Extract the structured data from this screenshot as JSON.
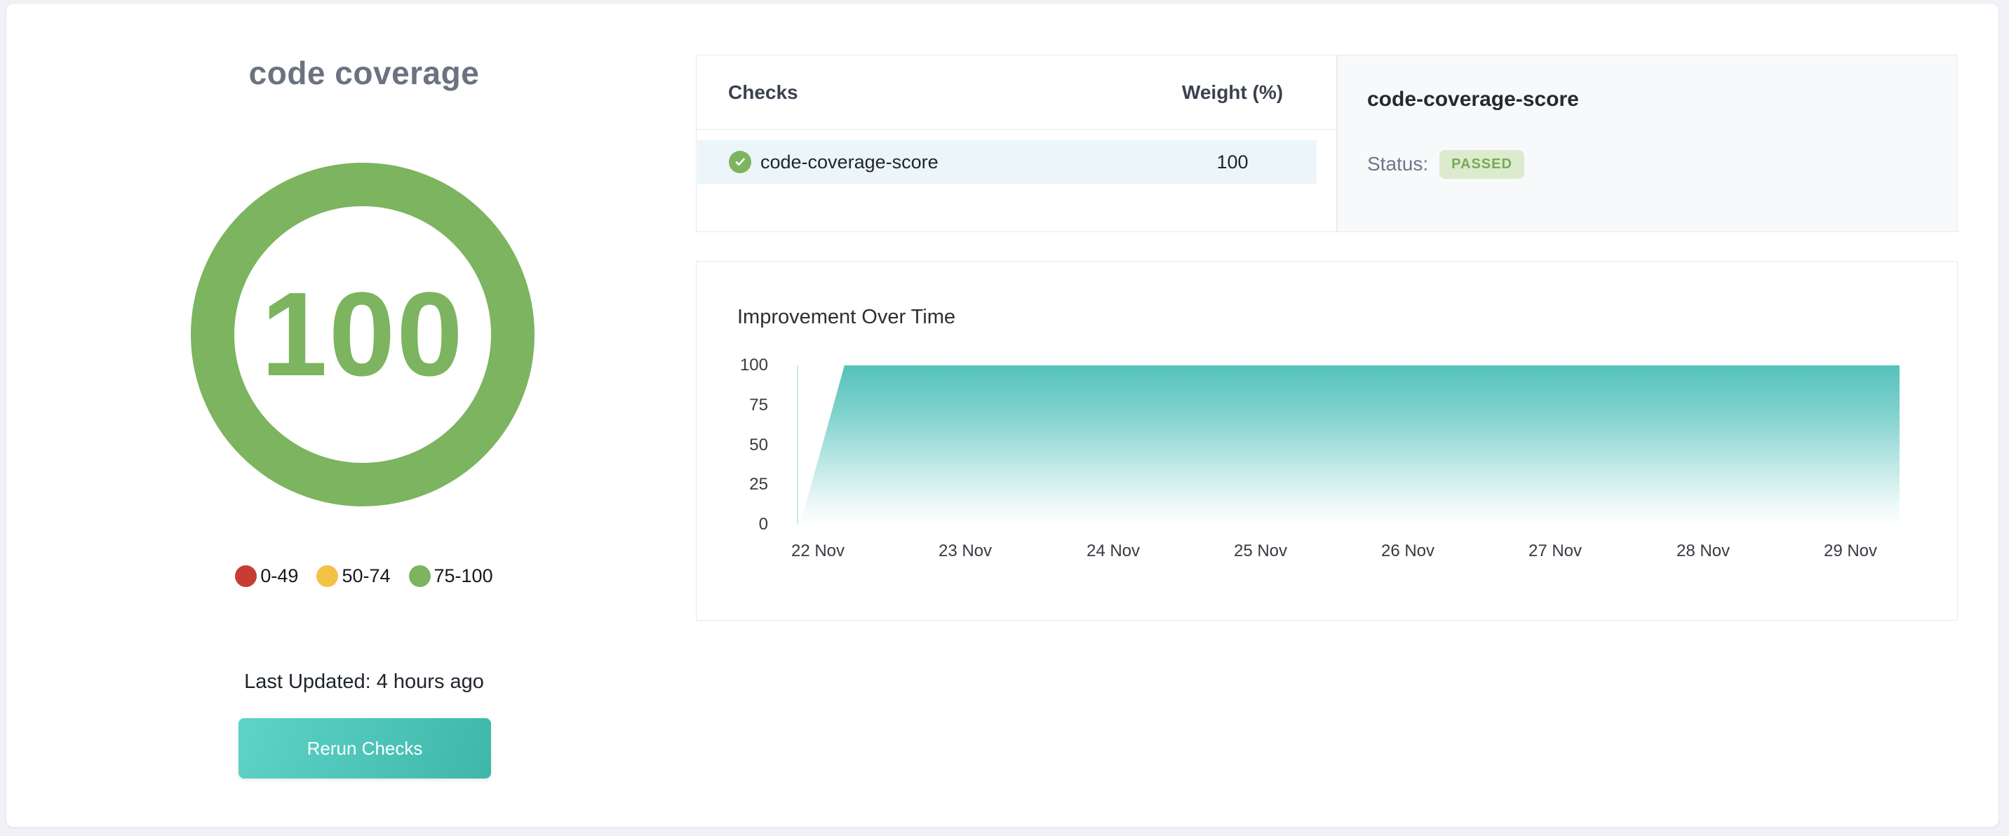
{
  "colors": {
    "green": "#7cb45f",
    "red": "#c63e33",
    "yellow": "#f2c245",
    "teal_area": "#54c2bc",
    "button_from": "#5ed3c8",
    "button_to": "#3eb7a9",
    "row_highlight": "#ecf6fa",
    "badge_bg": "#dcebce",
    "badge_text": "#76ab55",
    "axis_line": "#c9ebe8",
    "title_gray": "#6b7280"
  },
  "gauge_panel": {
    "title": "code coverage",
    "score": "100",
    "legend": [
      {
        "label": "0-49",
        "color": "#c63e33"
      },
      {
        "label": "50-74",
        "color": "#f2c245"
      },
      {
        "label": "75-100",
        "color": "#7cb45f"
      }
    ],
    "last_updated": "Last Updated: 4 hours ago",
    "rerun_button_label": "Rerun Checks"
  },
  "checks_table": {
    "columns": [
      "Checks",
      "Weight (%)"
    ],
    "rows": [
      {
        "name": "code-coverage-score",
        "weight": "100",
        "status_icon": "check-passed-icon",
        "selected": true
      }
    ]
  },
  "status_panel": {
    "title": "code-coverage-score",
    "status_label": "Status:",
    "status_value": "PASSED"
  },
  "chart_data": {
    "type": "area",
    "title": "Improvement Over Time",
    "x_tick_labels": [
      "22 Nov",
      "23 Nov",
      "24 Nov",
      "25 Nov",
      "26 Nov",
      "27 Nov",
      "28 Nov",
      "29 Nov"
    ],
    "y_tick_labels": [
      100,
      75,
      50,
      25,
      0
    ],
    "ylim": [
      0,
      100
    ],
    "x_day_range": [
      21.867,
      29.333
    ],
    "series": [
      {
        "name": "code-coverage-score",
        "points": [
          {
            "label": "22 Nov",
            "day": 21.88,
            "value": 0
          },
          {
            "label": "22 Nov",
            "day": 22.18,
            "value": 100
          },
          {
            "label": "29 Nov",
            "day": 29.333,
            "value": 100
          }
        ]
      }
    ],
    "grid": false,
    "legend_position": "none",
    "area_fill": "teal gradient fading to white toward baseline"
  }
}
